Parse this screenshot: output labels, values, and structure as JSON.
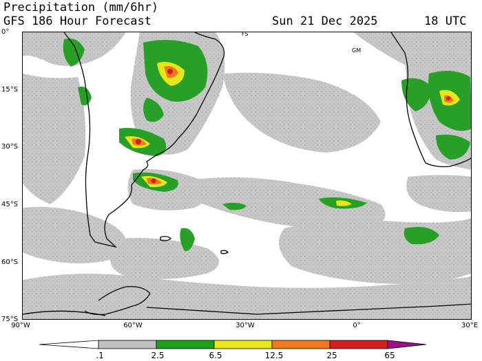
{
  "header": {
    "line1": "Precipitation (mm/6hr)",
    "line2_left": "GFS 186 Hour Forecast",
    "date": "Sun 21 Dec 2025",
    "time": "18 UTC"
  },
  "map": {
    "lat_labels": [
      "0°",
      "15°S",
      "30°S",
      "45°S",
      "60°S",
      "75°S"
    ],
    "lon_labels": [
      "90°W",
      "60°W",
      "30°W",
      "0°",
      "30°E"
    ],
    "place_labels": [
      "FS",
      "GM"
    ]
  },
  "colorbar": {
    "labels": [
      ".1",
      "2.5",
      "6.5",
      "12.5",
      "25",
      "65"
    ],
    "colors": [
      "#ffffff",
      "#c0c0c0",
      "#1aa01a",
      "#e6e619",
      "#f07820",
      "#d21e1e",
      "#9b1088"
    ]
  },
  "colors": {
    "light_precip": "#c8c8c8",
    "moderate": "#28a028",
    "heavy": "#e6e619",
    "very_heavy": "#f07820",
    "extreme": "#d21e1e",
    "coastline": "#000000"
  }
}
